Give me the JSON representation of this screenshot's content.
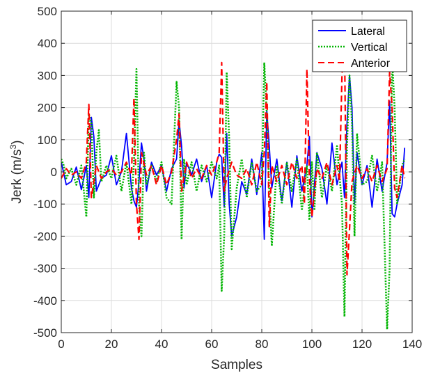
{
  "chart_data": {
    "type": "line",
    "xlabel": "Samples",
    "ylabel": "Jerk (m/s",
    "ylabel_superscript": "3",
    "ylabel_suffix": ")",
    "xlim": [
      0,
      140
    ],
    "ylim": [
      -500,
      500
    ],
    "x_ticks": [
      0,
      20,
      40,
      60,
      80,
      100,
      120,
      140
    ],
    "y_ticks": [
      -500,
      -400,
      -300,
      -200,
      -100,
      0,
      100,
      200,
      300,
      400,
      500
    ],
    "grid": true,
    "legend_position": "top-right",
    "series": [
      {
        "name": "Lateral",
        "color": "#0000ff",
        "style": "solid",
        "x": [
          0,
          2,
          4,
          6,
          8,
          9,
          10,
          11,
          12,
          13,
          14,
          16,
          18,
          20,
          22,
          24,
          26,
          28,
          29,
          30,
          31,
          32,
          33,
          34,
          36,
          38,
          40,
          42,
          44,
          46,
          47,
          48,
          49,
          50,
          52,
          54,
          56,
          58,
          60,
          62,
          63,
          64,
          65,
          66,
          67,
          68,
          70,
          72,
          74,
          76,
          78,
          80,
          81,
          82,
          83,
          84,
          86,
          88,
          90,
          92,
          94,
          96,
          98,
          99,
          100,
          101,
          102,
          104,
          106,
          108,
          110,
          112,
          113,
          114,
          115,
          116,
          117,
          118,
          120,
          122,
          124,
          126,
          128,
          130,
          131,
          132,
          133,
          134,
          136,
          137
        ],
        "values": [
          30,
          -40,
          -30,
          15,
          -55,
          -20,
          20,
          -80,
          170,
          110,
          -60,
          -20,
          -10,
          50,
          -40,
          0,
          120,
          -50,
          -90,
          -110,
          -30,
          90,
          40,
          -60,
          30,
          -10,
          20,
          -60,
          10,
          40,
          160,
          80,
          -50,
          30,
          -10,
          40,
          -30,
          20,
          -80,
          30,
          55,
          45,
          -110,
          120,
          -100,
          -200,
          -140,
          -30,
          -70,
          40,
          -70,
          60,
          -210,
          190,
          80,
          -50,
          40,
          -90,
          30,
          -110,
          50,
          -60,
          20,
          110,
          -140,
          -40,
          60,
          10,
          -100,
          90,
          -40,
          30,
          -80,
          150,
          300,
          200,
          -100,
          60,
          -40,
          20,
          -110,
          40,
          -60,
          30,
          220,
          -130,
          -140,
          -100,
          -40,
          75
        ]
      },
      {
        "name": "Vertical",
        "color": "#00b400",
        "style": "dotted",
        "x": [
          0,
          1,
          2,
          4,
          6,
          8,
          9,
          10,
          11,
          12,
          13,
          14,
          15,
          16,
          18,
          20,
          22,
          24,
          26,
          28,
          29,
          30,
          31,
          32,
          33,
          34,
          36,
          38,
          40,
          42,
          44,
          46,
          47,
          48,
          49,
          50,
          52,
          54,
          56,
          58,
          60,
          62,
          63,
          64,
          65,
          66,
          67,
          68,
          70,
          72,
          74,
          76,
          78,
          80,
          81,
          82,
          83,
          84,
          86,
          88,
          90,
          92,
          94,
          96,
          98,
          99,
          100,
          101,
          102,
          104,
          106,
          108,
          110,
          112,
          113,
          114,
          115,
          116,
          117,
          118,
          120,
          122,
          124,
          126,
          128,
          130,
          131,
          132,
          133,
          134,
          136,
          137
        ],
        "values": [
          40,
          20,
          -20,
          10,
          -40,
          20,
          -60,
          -140,
          180,
          150,
          -80,
          60,
          130,
          -30,
          20,
          -20,
          50,
          -60,
          30,
          -100,
          30,
          320,
          -100,
          -200,
          60,
          -40,
          20,
          -30,
          30,
          -80,
          -100,
          280,
          200,
          -210,
          40,
          -40,
          30,
          -60,
          20,
          -30,
          30,
          -20,
          20,
          -370,
          -200,
          310,
          100,
          -240,
          -50,
          40,
          -80,
          30,
          -60,
          -40,
          340,
          180,
          -60,
          -230,
          20,
          -100,
          30,
          -60,
          40,
          -120,
          20,
          -150,
          30,
          -120,
          60,
          -80,
          20,
          -60,
          80,
          -100,
          -450,
          80,
          300,
          150,
          -200,
          120,
          -40,
          -30,
          50,
          -60,
          30,
          -490,
          -300,
          350,
          200,
          -100,
          20,
          40
        ]
      },
      {
        "name": "Anterior",
        "color": "#ff0000",
        "style": "dashed",
        "x": [
          0,
          2,
          4,
          6,
          8,
          10,
          11,
          12,
          14,
          16,
          18,
          20,
          22,
          24,
          26,
          28,
          29,
          30,
          31,
          32,
          34,
          36,
          38,
          40,
          42,
          44,
          46,
          47,
          48,
          50,
          52,
          54,
          56,
          58,
          60,
          62,
          63,
          64,
          65,
          66,
          68,
          70,
          72,
          74,
          76,
          78,
          80,
          81,
          82,
          83,
          84,
          86,
          88,
          90,
          92,
          94,
          96,
          97,
          98,
          99,
          100,
          102,
          104,
          106,
          108,
          110,
          111,
          112,
          113,
          114,
          115,
          116,
          118,
          120,
          122,
          124,
          126,
          128,
          130,
          131,
          132,
          133,
          134,
          136,
          137
        ],
        "values": [
          -20,
          10,
          -10,
          0,
          -20,
          30,
          210,
          -80,
          20,
          -20,
          0,
          10,
          -10,
          0,
          30,
          -10,
          230,
          -100,
          -210,
          60,
          -10,
          20,
          -40,
          20,
          -40,
          0,
          100,
          180,
          -60,
          30,
          -20,
          10,
          -20,
          20,
          -10,
          30,
          60,
          340,
          -60,
          -20,
          30,
          -10,
          -20,
          10,
          -40,
          30,
          -40,
          60,
          280,
          -170,
          20,
          -30,
          20,
          -40,
          30,
          -20,
          20,
          -100,
          320,
          -20,
          -140,
          10,
          -20,
          30,
          -40,
          20,
          -30,
          300,
          410,
          -320,
          -180,
          -30,
          20,
          -20,
          10,
          -30,
          20,
          -30,
          10,
          310,
          200,
          -50,
          -80,
          20,
          -20
        ]
      }
    ]
  }
}
